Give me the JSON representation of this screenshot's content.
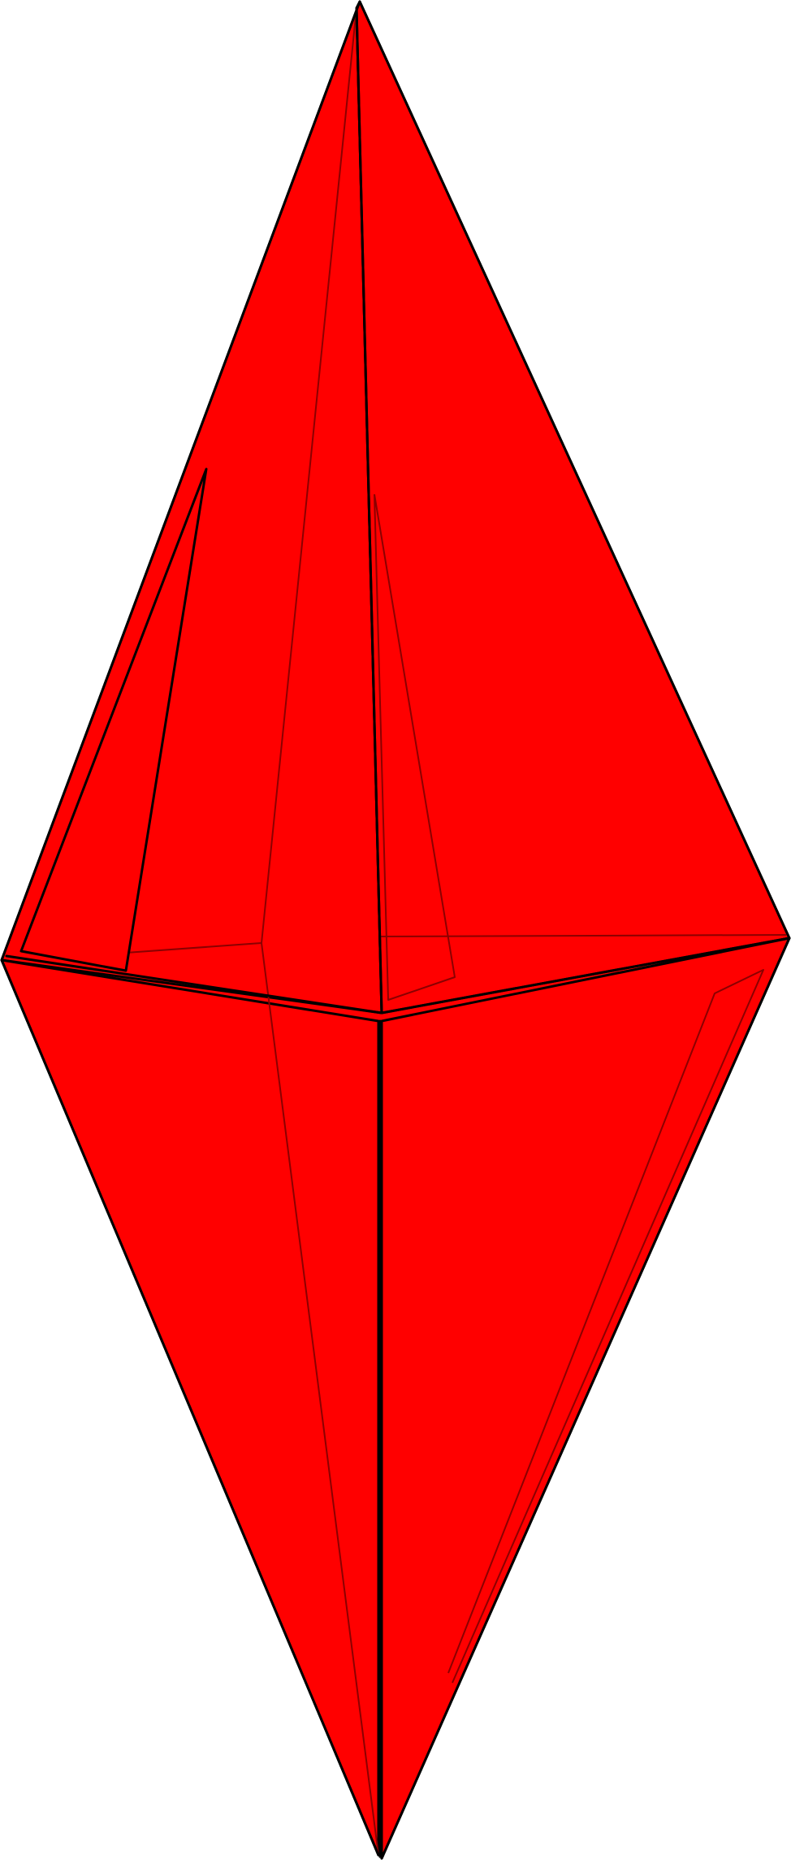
{
  "figure": {
    "subject": "red-bipyramid-polyhedron",
    "colors": {
      "fill": "#ff0000",
      "edge": "#000000",
      "hidden_edge": "#8b0000",
      "background": "#ffffff"
    }
  }
}
